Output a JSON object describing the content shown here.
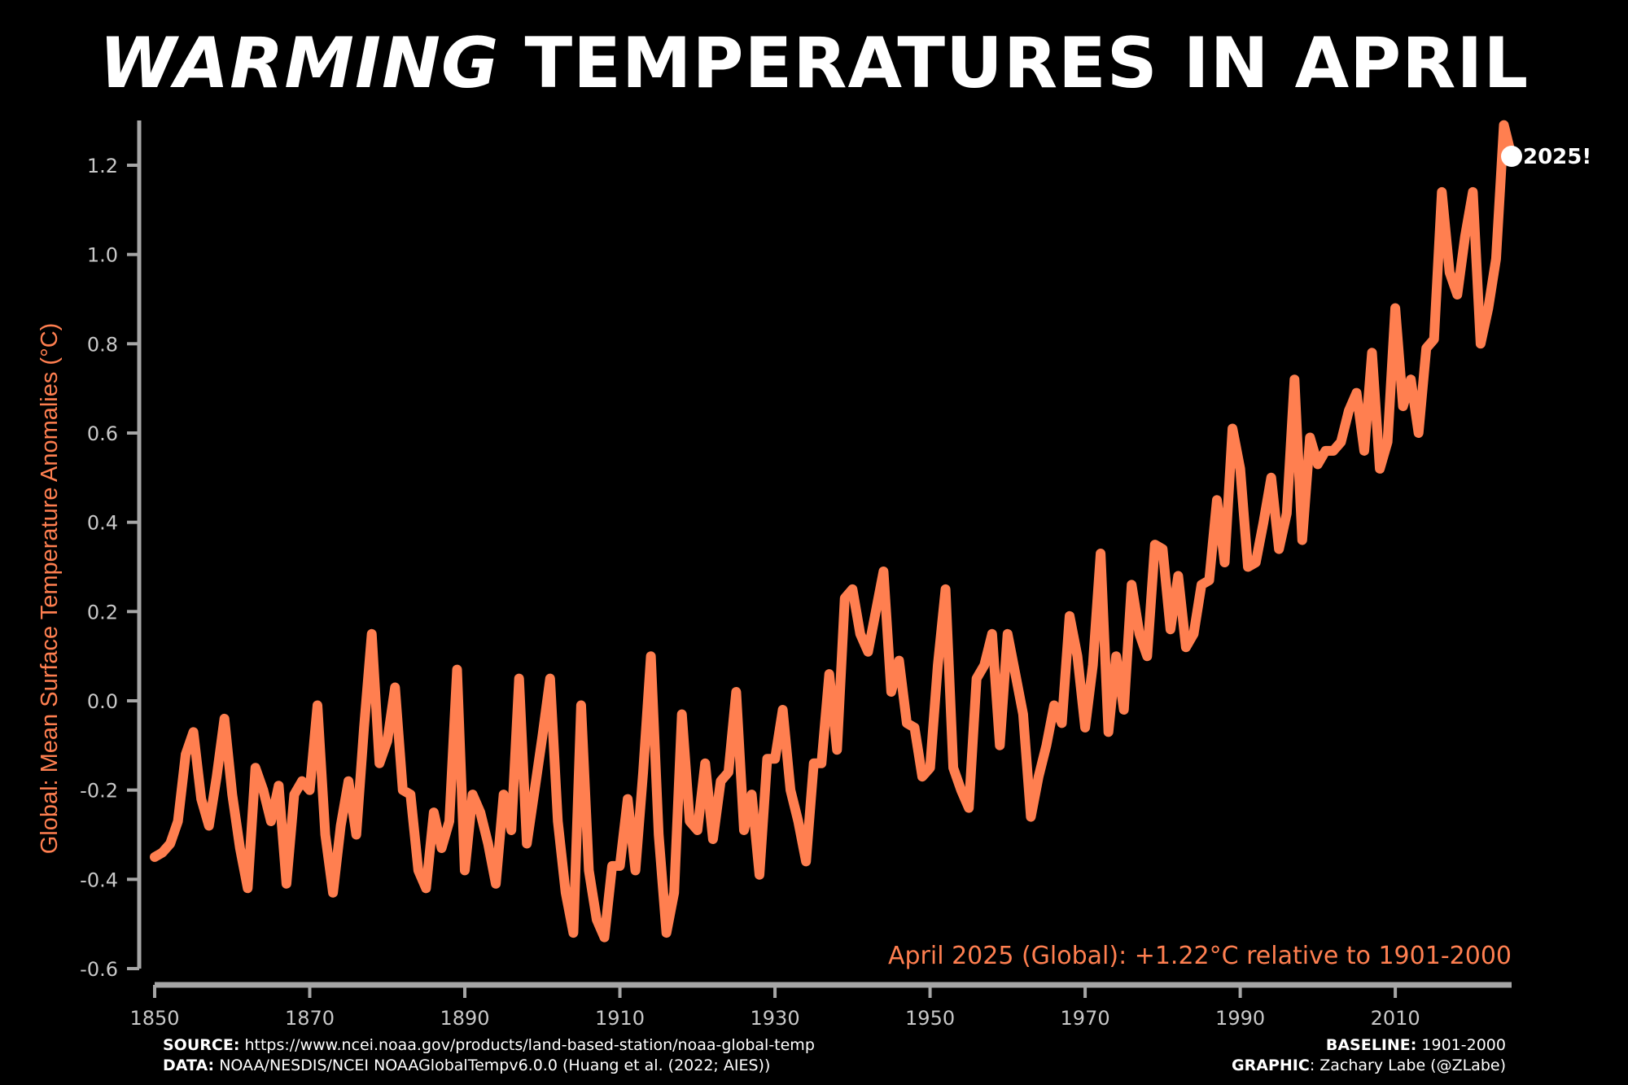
{
  "title": {
    "emphasis": "WARMING",
    "rest": "TEMPERATURES IN APRIL"
  },
  "footer": {
    "source_label": "SOURCE:",
    "source_value": "https://www.ncei.noaa.gov/products/land-based-station/noaa-global-temp",
    "data_label": "DATA:",
    "data_value": "NOAA/NESDIS/NCEI NOAAGlobalTempv6.0.0 (Huang et al. (2022; AIES))",
    "baseline_label": "BASELINE:",
    "baseline_value": "1901-2000",
    "graphic_label": "GRAPHIC",
    "graphic_value": ": Zachary Labe (@ZLabe)"
  },
  "colors": {
    "line": "#ff7f50",
    "axis": "#a6a6a6",
    "tick_text": "#c8c8c8",
    "background": "#000000",
    "marker": "#ffffff"
  },
  "chart_data": {
    "type": "line",
    "title": "WARMING TEMPERATURES IN APRIL",
    "ylabel": "Global: Mean Surface Temperature Anomalies (°C)",
    "xlabel": "",
    "xlim": [
      1850,
      2025
    ],
    "ylim": [
      -0.6,
      1.3
    ],
    "xticks": [
      1850,
      1870,
      1890,
      1910,
      1930,
      1950,
      1970,
      1990,
      2010
    ],
    "yticks": [
      "-0.6",
      "-0.4",
      "-0.2",
      "0.0",
      "0.2",
      "0.4",
      "0.6",
      "0.8",
      "1.0",
      "1.2"
    ],
    "grid": false,
    "annotation": "April 2025 (Global): +1.22°C relative to 1901-2000",
    "highlight": {
      "x": 2025,
      "y": 1.22,
      "label": "2025!"
    },
    "series": [
      {
        "x_start": 1850,
        "values": [
          -0.35,
          -0.34,
          -0.32,
          -0.27,
          -0.12,
          -0.07,
          -0.22,
          -0.28,
          -0.17,
          -0.04,
          -0.21,
          -0.33,
          -0.42,
          -0.15,
          -0.2,
          -0.27,
          -0.19,
          -0.41,
          -0.21,
          -0.18,
          -0.2,
          -0.01,
          -0.3,
          -0.43,
          -0.28,
          -0.18,
          -0.3,
          -0.06,
          0.15,
          -0.14,
          -0.09,
          0.03,
          -0.2,
          -0.21,
          -0.38,
          -0.42,
          -0.25,
          -0.33,
          -0.27,
          0.07,
          -0.38,
          -0.21,
          -0.25,
          -0.32,
          -0.41,
          -0.21,
          -0.29,
          0.05,
          -0.32,
          -0.2,
          -0.08,
          0.05,
          -0.27,
          -0.43,
          -0.52,
          -0.01,
          -0.38,
          -0.49,
          -0.53,
          -0.37,
          -0.37,
          -0.22,
          -0.38,
          -0.16,
          0.1,
          -0.3,
          -0.52,
          -0.43,
          -0.03,
          -0.27,
          -0.29,
          -0.14,
          -0.31,
          -0.18,
          -0.16,
          0.02,
          -0.29,
          -0.21,
          -0.39,
          -0.13,
          -0.13,
          -0.02,
          -0.2,
          -0.27,
          -0.36,
          -0.14,
          -0.14,
          0.06,
          -0.11,
          0.23,
          0.25,
          0.15,
          0.11,
          0.2,
          0.29,
          0.02,
          0.09,
          -0.05,
          -0.06,
          -0.17,
          -0.15,
          0.08,
          0.25,
          -0.15,
          -0.2,
          -0.24,
          0.05,
          0.08,
          0.15,
          -0.1,
          0.15,
          0.06,
          -0.03,
          -0.26,
          -0.17,
          -0.1,
          -0.01,
          -0.05,
          0.19,
          0.1,
          -0.06,
          0.08,
          0.33,
          -0.07,
          0.1,
          -0.02,
          0.26,
          0.15,
          0.1,
          0.35,
          0.34,
          0.16,
          0.28,
          0.12,
          0.15,
          0.26,
          0.27,
          0.45,
          0.31,
          0.61,
          0.52,
          0.3,
          0.31,
          0.4,
          0.5,
          0.34,
          0.42,
          0.72,
          0.36,
          0.59,
          0.53,
          0.56,
          0.56,
          0.58,
          0.65,
          0.69,
          0.56,
          0.78,
          0.52,
          0.58,
          0.88,
          0.66,
          0.72,
          0.6,
          0.79,
          0.81,
          1.14,
          0.96,
          0.91,
          1.04,
          1.14,
          0.8,
          0.88,
          0.99,
          1.29,
          1.22
        ]
      }
    ]
  }
}
